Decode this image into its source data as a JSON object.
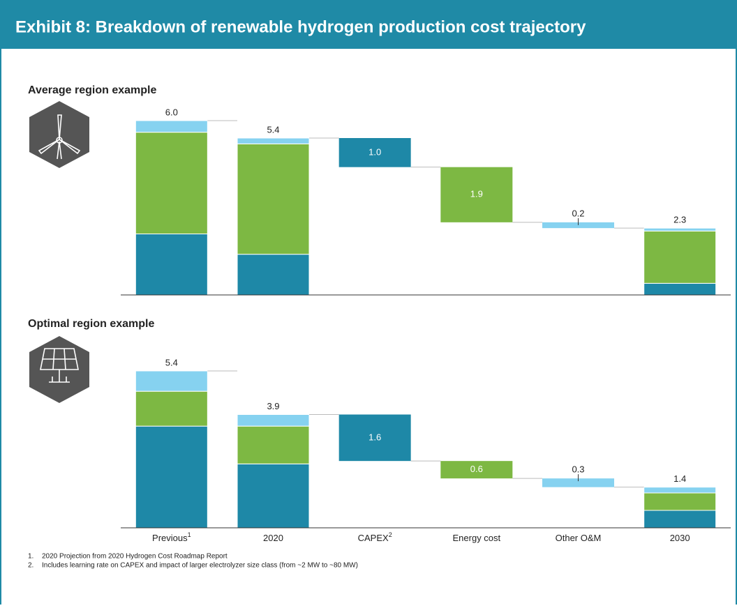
{
  "title": "Exhibit 8: Breakdown of renewable hydrogen production cost trajectory",
  "footnotes": [
    {
      "marker": "1.",
      "text": "2020 Projection from 2020 Hydrogen Cost Roadmap Report"
    },
    {
      "marker": "2.",
      "text": "Includes learning rate on CAPEX and impact of larger electrolyzer size class (from ~2 MW to ~80 MW)"
    }
  ],
  "chart_data": [
    {
      "type": "waterfall",
      "title": "Average region example",
      "categories": [
        null,
        null,
        null,
        null,
        null,
        null
      ],
      "measure": [
        "total",
        "total",
        "decrease",
        "decrease",
        "decrease",
        "total"
      ],
      "values": [
        6.0,
        5.4,
        1.0,
        1.9,
        0.2,
        2.3
      ],
      "value_labels": [
        "6.0",
        "5.4",
        "1.0",
        "1.9",
        "0.2",
        "2.3"
      ],
      "colors": [
        null,
        null,
        "#1e88a7",
        "#7db843",
        "#86d2f0",
        null
      ],
      "series": [
        {
          "color": "#1e88a7",
          "values": [
            2.1,
            1.4,
            null,
            null,
            null,
            0.4
          ]
        },
        {
          "color": "#7db843",
          "values": [
            3.5,
            3.8,
            null,
            null,
            null,
            1.8
          ]
        },
        {
          "color": "#86d2f0",
          "values": [
            0.4,
            0.2,
            null,
            null,
            null,
            0.1
          ]
        }
      ],
      "ylim": [
        0,
        6
      ]
    },
    {
      "type": "waterfall",
      "title": "Optimal region example",
      "categories": [
        "Previous",
        "2020",
        "CAPEX",
        "Energy cost",
        "Other O&M",
        "2030"
      ],
      "category_notes": [
        "1",
        null,
        "2",
        null,
        null,
        null
      ],
      "measure": [
        "total",
        "total",
        "decrease",
        "decrease",
        "decrease",
        "total"
      ],
      "values": [
        5.4,
        3.9,
        1.6,
        0.6,
        0.3,
        1.4
      ],
      "value_labels": [
        "5.4",
        "3.9",
        "1.6",
        "0.6",
        "0.3",
        "1.4"
      ],
      "colors": [
        null,
        null,
        "#1e88a7",
        "#7db843",
        "#86d2f0",
        null
      ],
      "series": [
        {
          "color": "#1e88a7",
          "values": [
            3.5,
            2.2,
            null,
            null,
            null,
            0.6
          ]
        },
        {
          "color": "#7db843",
          "values": [
            1.2,
            1.3,
            null,
            null,
            null,
            0.6
          ]
        },
        {
          "color": "#86d2f0",
          "values": [
            0.7,
            0.4,
            null,
            null,
            null,
            0.2
          ]
        }
      ],
      "ylim": [
        0,
        6
      ]
    }
  ]
}
